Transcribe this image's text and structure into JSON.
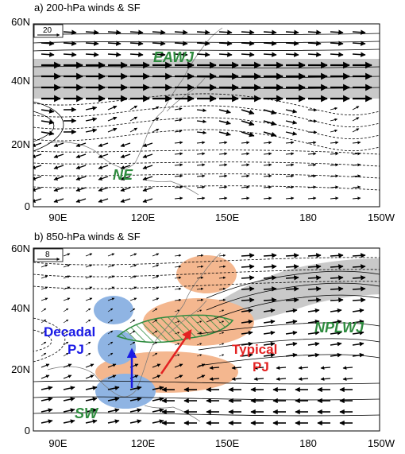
{
  "panel_a": {
    "title": "a) 200-hPa winds & SF",
    "y_ticks": [
      "60N",
      "40N",
      "20N",
      "0"
    ],
    "x_ticks": [
      "90E",
      "120E",
      "150E",
      "180",
      "150W"
    ],
    "ref_vector": "20",
    "labels": {
      "jet": "EAWJ",
      "ne": "NE"
    }
  },
  "panel_b": {
    "title": "b) 850-hPa winds & SF",
    "y_ticks": [
      "60N",
      "40N",
      "20N",
      "0"
    ],
    "x_ticks": [
      "90E",
      "120E",
      "150E",
      "180",
      "150W"
    ],
    "ref_vector": "8",
    "labels": {
      "decadal_1": "Decadal",
      "decadal_2": "PJ",
      "typical_1": "Typical",
      "typical_2": "PJ",
      "jet": "NPLWJ",
      "sw": "SW"
    }
  },
  "colors": {
    "green_label": "#2e8b3e",
    "blue_label": "#1a1ae6",
    "red_label": "#e32222",
    "orange_shade": "#f4b78f",
    "blue_shade": "#8fb4e3",
    "gray_shade": "#c9c9c9"
  }
}
